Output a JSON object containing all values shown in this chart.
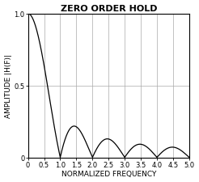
{
  "title": "ZERO ORDER HOLD",
  "xlabel": "NORMALIZED FREQUENCY",
  "ylabel": "AMPLITUDE |H(F)|",
  "xlim": [
    0,
    5.0
  ],
  "ylim": [
    0,
    1.0
  ],
  "xticks": [
    0,
    0.5,
    1.0,
    1.5,
    2.0,
    2.5,
    3.0,
    3.5,
    4.0,
    4.5,
    5.0
  ],
  "xtick_labels": [
    "0",
    "0.5",
    "1.0",
    "1.5",
    "2.0",
    "2.5",
    "3.0",
    "3.5",
    "4.0",
    "4.5",
    "5.0"
  ],
  "yticks": [
    0,
    0.5,
    1.0
  ],
  "ytick_labels": [
    "0",
    "0.5",
    "1.0"
  ],
  "grid_color": "#aaaaaa",
  "line_color": "#000000",
  "background_color": "#ffffff",
  "title_fontsize": 8,
  "label_fontsize": 6.5,
  "tick_fontsize": 6
}
